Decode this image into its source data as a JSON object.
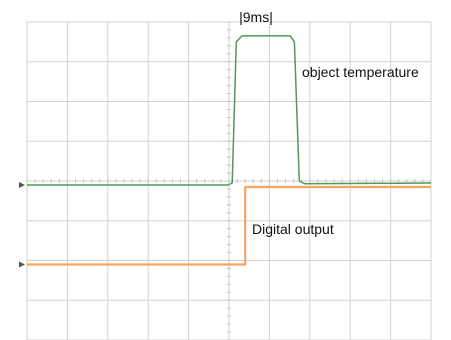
{
  "chart_data": {
    "type": "line",
    "title": "",
    "xlabel": "",
    "ylabel": "",
    "x_divisions": 10,
    "y_divisions": 8,
    "grid": true,
    "annotations": {
      "duration": "|9ms|",
      "object_temperature": "object temperature",
      "digital_output": "Digital output"
    },
    "series": [
      {
        "name": "object temperature",
        "color": "#4f9a55",
        "x": [
          0,
          4.97,
          5.08,
          5.18,
          5.32,
          6.52,
          6.62,
          6.74,
          6.88,
          10
        ],
        "y": [
          3.9,
          3.9,
          3.95,
          7.5,
          7.65,
          7.65,
          7.5,
          4.0,
          3.93,
          3.95
        ]
      },
      {
        "name": "Digital output",
        "color": "#f4a560",
        "x": [
          0,
          5.4,
          5.4,
          10
        ],
        "y": [
          1.9,
          1.9,
          3.85,
          3.85
        ]
      }
    ]
  }
}
